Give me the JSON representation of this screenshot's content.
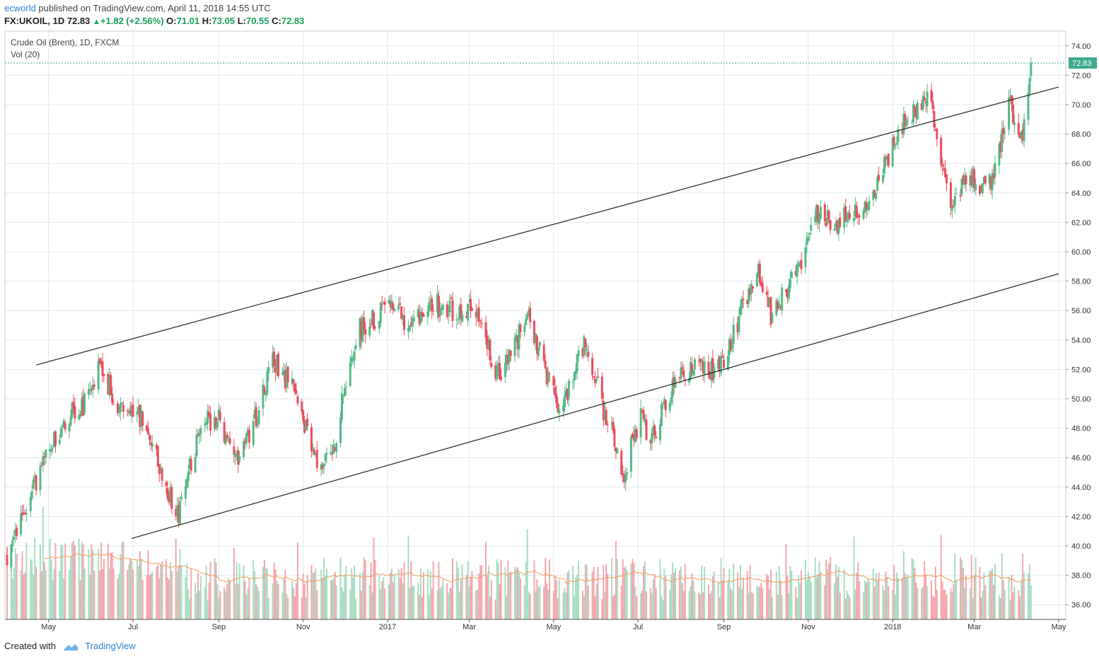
{
  "header": {
    "author": "ecworld",
    "published": "published on TradingView.com, April 11, 2018 14:55 UTC",
    "symbol": "FX:UKOIL, 1D",
    "last": "72.83",
    "change": "+1.82 (+2.56%)",
    "o_label": "O:",
    "o": "71.01",
    "h_label": "H:",
    "h": "73.05",
    "l_label": "L:",
    "l": "70.55",
    "c_label": "C:",
    "c": "72.83"
  },
  "legend": {
    "title": "Crude Oil (Brent), 1D, FXCM",
    "volume": "Vol (20)"
  },
  "footer": {
    "created_with": "Created with",
    "brand": "TradingView"
  },
  "colors": {
    "up": "#53b987",
    "down": "#eb4d5c",
    "up_vol": "#a9dcc3",
    "down_vol": "#f5a6ae",
    "grid": "#e0e8f0",
    "ma": "#f29d5b",
    "last_price": "#3ea98f"
  },
  "chart_data": {
    "type": "candlestick",
    "title": "Crude Oil (Brent), 1D, FXCM",
    "ylim": [
      35,
      75
    ],
    "y_ticks": [
      "74.00",
      "72.00",
      "70.00",
      "68.00",
      "66.00",
      "64.00",
      "62.00",
      "60.00",
      "58.00",
      "56.00",
      "54.00",
      "52.00",
      "50.00",
      "48.00",
      "46.00",
      "44.00",
      "42.00",
      "40.00",
      "38.00",
      "36.00"
    ],
    "x_ticks": [
      "May",
      "Jul",
      "Sep",
      "Nov",
      "2017",
      "Mar",
      "May",
      "Jul",
      "Sep",
      "Nov",
      "2018",
      "Mar",
      "May"
    ],
    "last_price": "72.83",
    "close_series": [
      {
        "date": "2016-04-01",
        "close": 39.5
      },
      {
        "date": "2016-04-15",
        "close": 42.8
      },
      {
        "date": "2016-05-01",
        "close": 46.5
      },
      {
        "date": "2016-05-15",
        "close": 48.8
      },
      {
        "date": "2016-06-01",
        "close": 50.0
      },
      {
        "date": "2016-06-08",
        "close": 52.5
      },
      {
        "date": "2016-06-20",
        "close": 49.0
      },
      {
        "date": "2016-07-01",
        "close": 49.5
      },
      {
        "date": "2016-07-15",
        "close": 47.0
      },
      {
        "date": "2016-08-02",
        "close": 42.0
      },
      {
        "date": "2016-08-20",
        "close": 48.5
      },
      {
        "date": "2016-09-01",
        "close": 48.5
      },
      {
        "date": "2016-09-15",
        "close": 46.0
      },
      {
        "date": "2016-10-01",
        "close": 49.5
      },
      {
        "date": "2016-10-10",
        "close": 52.8
      },
      {
        "date": "2016-10-25",
        "close": 50.5
      },
      {
        "date": "2016-11-14",
        "close": 45.0
      },
      {
        "date": "2016-11-25",
        "close": 47.5
      },
      {
        "date": "2016-12-01",
        "close": 51.0
      },
      {
        "date": "2016-12-10",
        "close": 54.5
      },
      {
        "date": "2017-01-03",
        "close": 56.5
      },
      {
        "date": "2017-01-15",
        "close": 55.0
      },
      {
        "date": "2017-02-01",
        "close": 56.5
      },
      {
        "date": "2017-02-20",
        "close": 56.0
      },
      {
        "date": "2017-03-07",
        "close": 56.0
      },
      {
        "date": "2017-03-20",
        "close": 51.5
      },
      {
        "date": "2017-04-01",
        "close": 53.0
      },
      {
        "date": "2017-04-12",
        "close": 56.0
      },
      {
        "date": "2017-04-25",
        "close": 52.0
      },
      {
        "date": "2017-05-05",
        "close": 49.0
      },
      {
        "date": "2017-05-25",
        "close": 54.0
      },
      {
        "date": "2017-06-05",
        "close": 49.5
      },
      {
        "date": "2017-06-21",
        "close": 45.0
      },
      {
        "date": "2017-07-03",
        "close": 49.0
      },
      {
        "date": "2017-07-10",
        "close": 47.0
      },
      {
        "date": "2017-07-25",
        "close": 50.5
      },
      {
        "date": "2017-08-01",
        "close": 52.0
      },
      {
        "date": "2017-08-25",
        "close": 52.0
      },
      {
        "date": "2017-09-01",
        "close": 52.5
      },
      {
        "date": "2017-09-25",
        "close": 59.0
      },
      {
        "date": "2017-10-05",
        "close": 55.8
      },
      {
        "date": "2017-10-25",
        "close": 58.5
      },
      {
        "date": "2017-11-05",
        "close": 62.5
      },
      {
        "date": "2017-11-20",
        "close": 62.0
      },
      {
        "date": "2017-12-05",
        "close": 62.5
      },
      {
        "date": "2017-12-20",
        "close": 64.5
      },
      {
        "date": "2018-01-03",
        "close": 67.8
      },
      {
        "date": "2018-01-15",
        "close": 69.5
      },
      {
        "date": "2018-01-25",
        "close": 70.5
      },
      {
        "date": "2018-02-01",
        "close": 69.0
      },
      {
        "date": "2018-02-12",
        "close": 62.5
      },
      {
        "date": "2018-02-25",
        "close": 65.5
      },
      {
        "date": "2018-03-05",
        "close": 64.0
      },
      {
        "date": "2018-03-15",
        "close": 65.0
      },
      {
        "date": "2018-03-26",
        "close": 70.0
      },
      {
        "date": "2018-04-05",
        "close": 67.5
      },
      {
        "date": "2018-04-11",
        "close": 72.83
      }
    ],
    "trendlines": [
      {
        "from": {
          "date": "2016-04-22",
          "price": 52.3
        },
        "to": {
          "date": "2018-05-01",
          "price": 71.2
        }
      },
      {
        "from": {
          "date": "2016-06-30",
          "price": 40.5
        },
        "to": {
          "date": "2018-05-01",
          "price": 58.5
        }
      }
    ]
  }
}
